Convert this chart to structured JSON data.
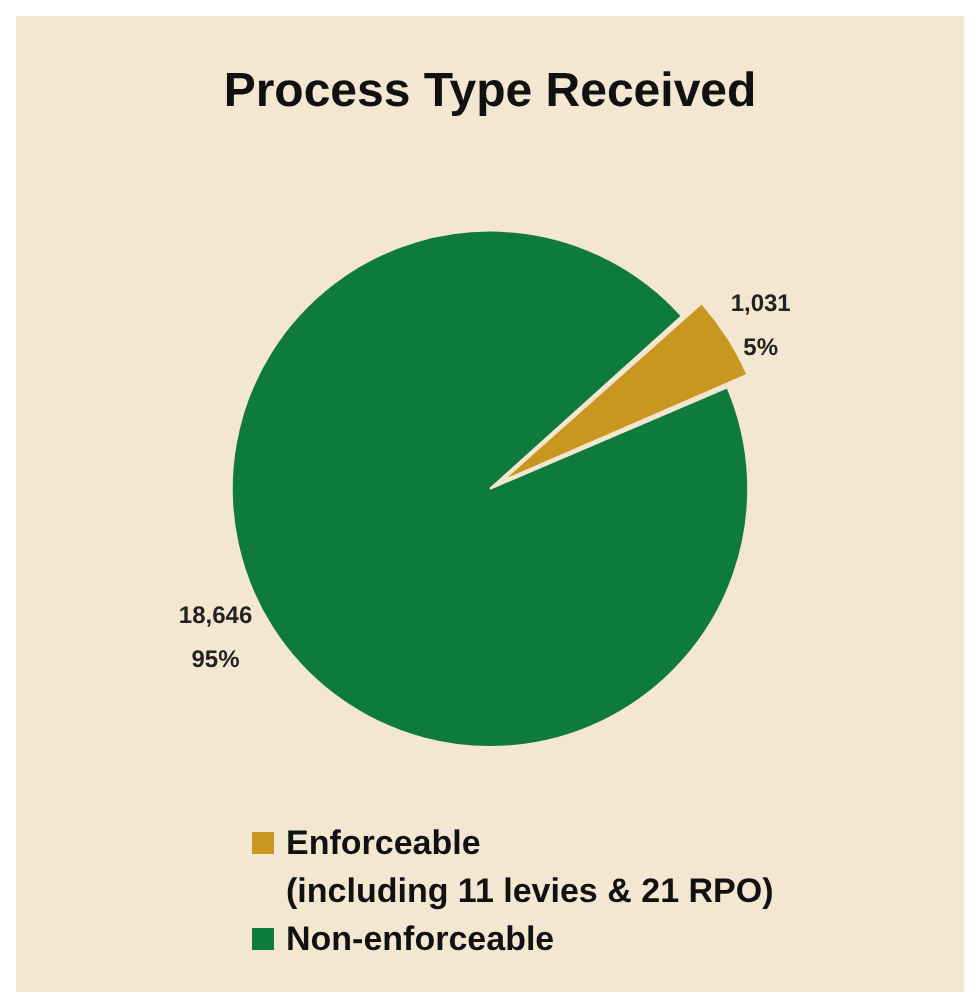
{
  "chart_data": {
    "type": "pie",
    "title": "Process Type Received",
    "categories": [
      "Enforceable\n(including 11 levies & 21 RPO)",
      "Non-enforceable"
    ],
    "values": [
      1031,
      18646
    ],
    "colors": [
      "#c9961f",
      "#0f7a3d"
    ],
    "value_labels": [
      "1,031\n5%",
      "18,646\n95%"
    ],
    "legend": "bottom"
  }
}
